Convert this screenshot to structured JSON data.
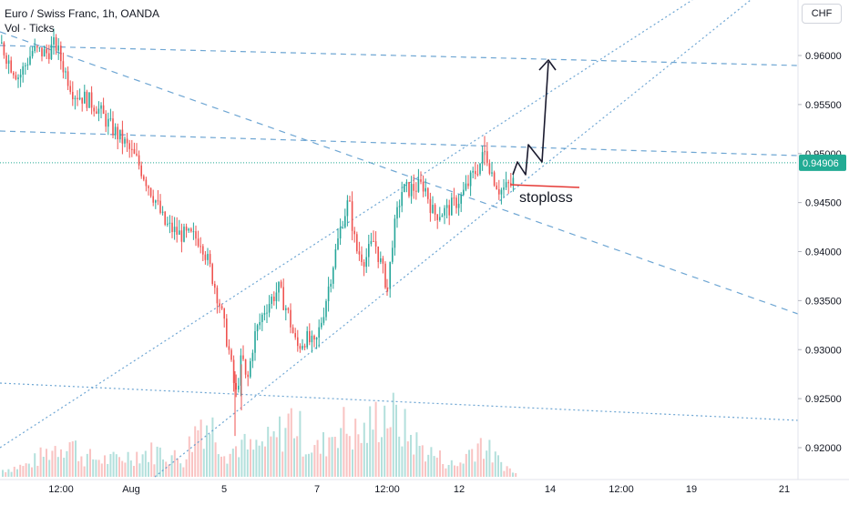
{
  "header": {
    "title": "Euro / Swiss Franc, 1h, OANDA",
    "indicator": "Vol · Ticks"
  },
  "price_axis": {
    "currency": "CHF",
    "last_price": "0.94906"
  },
  "annotation": {
    "text": "stoploss"
  },
  "colors": {
    "up": "#26a69a",
    "down": "#ef5350",
    "trendline": "#4a90c8",
    "stoploss": "#e53935",
    "projection": "#1a1a2e",
    "last_price_bg": "#22ab94"
  },
  "chart_data": {
    "type": "candlestick",
    "title": "Euro / Swiss Franc, 1h, OANDA",
    "ylabel": "CHF",
    "ylim": [
      0.9165,
      0.9658
    ],
    "yticks": [
      "0.96000",
      "0.95500",
      "0.95000",
      "0.94500",
      "0.94000",
      "0.93500",
      "0.93000",
      "0.92500",
      "0.92000"
    ],
    "xticks": [
      "12:00",
      "Aug",
      "5",
      "7",
      "12:00",
      "12",
      "14",
      "12:00",
      "19",
      "21"
    ],
    "last_price": 0.94906,
    "price_path": [
      [
        0,
        0.9612
      ],
      [
        10,
        0.9592
      ],
      [
        20,
        0.9578
      ],
      [
        35,
        0.9605
      ],
      [
        50,
        0.9602
      ],
      [
        60,
        0.9612
      ],
      [
        70,
        0.9585
      ],
      [
        80,
        0.9562
      ],
      [
        95,
        0.9555
      ],
      [
        105,
        0.9548
      ],
      [
        120,
        0.9528
      ],
      [
        135,
        0.9512
      ],
      [
        150,
        0.9492
      ],
      [
        160,
        0.9472
      ],
      [
        170,
        0.9452
      ],
      [
        180,
        0.9428
      ],
      [
        195,
        0.9418
      ],
      [
        210,
        0.9415
      ],
      [
        220,
        0.9412
      ],
      [
        230,
        0.9382
      ],
      [
        240,
        0.9348
      ],
      [
        250,
        0.9302
      ],
      [
        258,
        0.9252
      ],
      [
        265,
        0.9295
      ],
      [
        270,
        0.9262
      ],
      [
        278,
        0.9312
      ],
      [
        290,
        0.9342
      ],
      [
        305,
        0.9362
      ],
      [
        315,
        0.9338
      ],
      [
        325,
        0.9302
      ],
      [
        335,
        0.9312
      ],
      [
        345,
        0.9302
      ],
      [
        355,
        0.9342
      ],
      [
        365,
        0.9388
      ],
      [
        375,
        0.9432
      ],
      [
        382,
        0.9452
      ],
      [
        390,
        0.9402
      ],
      [
        400,
        0.9392
      ],
      [
        410,
        0.9412
      ],
      [
        420,
        0.9378
      ],
      [
        425,
        0.9362
      ],
      [
        430,
        0.9412
      ],
      [
        440,
        0.9462
      ],
      [
        455,
        0.9465
      ],
      [
        465,
        0.9468
      ],
      [
        475,
        0.9438
      ],
      [
        490,
        0.9442
      ],
      [
        505,
        0.9455
      ],
      [
        515,
        0.9472
      ],
      [
        525,
        0.9488
      ],
      [
        532,
        0.9502
      ],
      [
        540,
        0.9478
      ],
      [
        548,
        0.9462
      ],
      [
        555,
        0.9465
      ],
      [
        563,
        0.9472
      ]
    ],
    "volume_profile": [
      [
        0,
        10
      ],
      [
        30,
        18
      ],
      [
        60,
        45
      ],
      [
        75,
        55
      ],
      [
        90,
        30
      ],
      [
        120,
        25
      ],
      [
        150,
        35
      ],
      [
        175,
        38
      ],
      [
        200,
        25
      ],
      [
        220,
        90
      ],
      [
        235,
        70
      ],
      [
        250,
        35
      ],
      [
        262,
        50
      ],
      [
        275,
        40
      ],
      [
        300,
        55
      ],
      [
        320,
        90
      ],
      [
        335,
        50
      ],
      [
        350,
        40
      ],
      [
        370,
        80
      ],
      [
        395,
        60
      ],
      [
        420,
        100
      ],
      [
        430,
        90
      ],
      [
        460,
        45
      ],
      [
        480,
        30
      ],
      [
        500,
        15
      ],
      [
        525,
        55
      ],
      [
        545,
        25
      ],
      [
        565,
        5
      ]
    ]
  }
}
